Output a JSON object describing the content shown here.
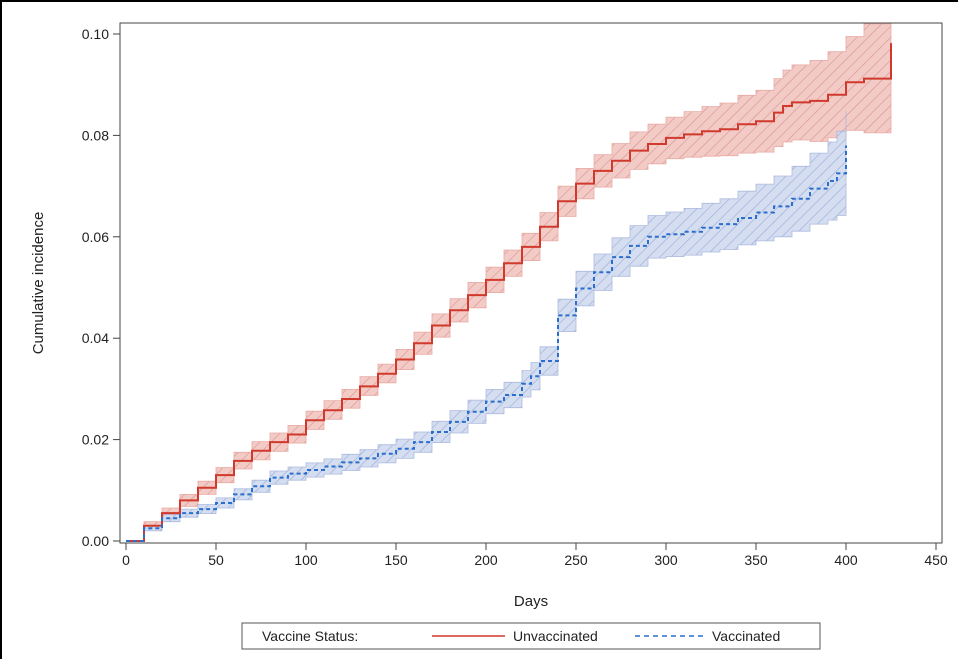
{
  "chart_data": {
    "type": "line",
    "title": "",
    "xlabel": "Days",
    "ylabel": "Cumulative incidence",
    "xlim": [
      0,
      450
    ],
    "ylim": [
      0,
      0.1
    ],
    "x_ticks": [
      "0",
      "50",
      "100",
      "150",
      "200",
      "250",
      "300",
      "350",
      "400",
      "450"
    ],
    "y_ticks": [
      "0.00",
      "0.02",
      "0.04",
      "0.06",
      "0.08",
      "0.10"
    ],
    "grid": false,
    "legend": {
      "placement": "bottom",
      "title": "Vaccine Status:",
      "entries": [
        "Unvaccinated",
        "Vaccinated"
      ]
    },
    "series": [
      {
        "name": "Unvaccinated",
        "color": "#d0392b",
        "band_color": "#e8a6a0",
        "line_style": "solid",
        "x": [
          0,
          10,
          20,
          30,
          40,
          50,
          60,
          70,
          80,
          90,
          100,
          110,
          120,
          130,
          140,
          150,
          160,
          170,
          180,
          190,
          200,
          210,
          220,
          230,
          240,
          250,
          260,
          270,
          280,
          290,
          300,
          310,
          320,
          330,
          340,
          350,
          360,
          365,
          370,
          380,
          390,
          400,
          410,
          425
        ],
        "y": [
          0,
          0.003,
          0.0055,
          0.008,
          0.0105,
          0.013,
          0.0158,
          0.0178,
          0.0195,
          0.021,
          0.0238,
          0.0258,
          0.028,
          0.0305,
          0.033,
          0.0358,
          0.039,
          0.0425,
          0.0455,
          0.0485,
          0.0515,
          0.0548,
          0.058,
          0.062,
          0.067,
          0.0705,
          0.073,
          0.075,
          0.077,
          0.0783,
          0.0795,
          0.0802,
          0.0808,
          0.0812,
          0.0822,
          0.0828,
          0.0845,
          0.0858,
          0.0865,
          0.0868,
          0.088,
          0.0905,
          0.0912,
          0.0982
        ],
        "lower": [
          0,
          0.0022,
          0.0045,
          0.0068,
          0.0092,
          0.0115,
          0.0142,
          0.016,
          0.0177,
          0.0193,
          0.022,
          0.024,
          0.0262,
          0.0287,
          0.0312,
          0.0338,
          0.0368,
          0.0402,
          0.0432,
          0.046,
          0.049,
          0.0522,
          0.0553,
          0.0592,
          0.064,
          0.0675,
          0.0698,
          0.0716,
          0.0733,
          0.0744,
          0.0754,
          0.0757,
          0.0759,
          0.076,
          0.0765,
          0.0767,
          0.0778,
          0.0787,
          0.0791,
          0.0788,
          0.0795,
          0.081,
          0.0805,
          0.0845
        ],
        "upper": [
          0,
          0.0038,
          0.0065,
          0.0092,
          0.0118,
          0.0145,
          0.0175,
          0.0196,
          0.0213,
          0.0228,
          0.0256,
          0.0277,
          0.0299,
          0.0324,
          0.0349,
          0.0378,
          0.0412,
          0.0448,
          0.0478,
          0.051,
          0.054,
          0.0574,
          0.0607,
          0.0648,
          0.07,
          0.0735,
          0.0762,
          0.0784,
          0.0807,
          0.0822,
          0.0836,
          0.0847,
          0.0857,
          0.0864,
          0.0879,
          0.0889,
          0.0912,
          0.0929,
          0.0939,
          0.0948,
          0.0965,
          0.0995,
          0.102,
          0.102
        ]
      },
      {
        "name": "Vaccinated",
        "color": "#2b6fce",
        "band_color": "#a8b7dd",
        "line_style": "dashed",
        "x": [
          0,
          10,
          20,
          30,
          40,
          50,
          60,
          70,
          80,
          90,
          100,
          110,
          120,
          130,
          140,
          150,
          160,
          170,
          180,
          190,
          200,
          210,
          220,
          225,
          230,
          240,
          250,
          260,
          270,
          280,
          290,
          300,
          310,
          320,
          330,
          340,
          350,
          360,
          370,
          380,
          390,
          395,
          400
        ],
        "y": [
          0,
          0.0025,
          0.0045,
          0.0055,
          0.0063,
          0.0075,
          0.0092,
          0.0108,
          0.0125,
          0.0133,
          0.014,
          0.0147,
          0.0155,
          0.0163,
          0.0172,
          0.0182,
          0.0195,
          0.0215,
          0.0235,
          0.0255,
          0.0275,
          0.0288,
          0.031,
          0.0325,
          0.0355,
          0.0445,
          0.0498,
          0.053,
          0.056,
          0.0582,
          0.06,
          0.0605,
          0.061,
          0.0618,
          0.0625,
          0.0637,
          0.0648,
          0.066,
          0.0675,
          0.0695,
          0.071,
          0.0725,
          0.078
        ],
        "lower": [
          0,
          0.002,
          0.0038,
          0.0047,
          0.0054,
          0.0065,
          0.0081,
          0.0096,
          0.0112,
          0.012,
          0.0126,
          0.0132,
          0.0139,
          0.0146,
          0.0154,
          0.0163,
          0.0175,
          0.0194,
          0.0213,
          0.0232,
          0.0251,
          0.0263,
          0.0284,
          0.0298,
          0.0327,
          0.0413,
          0.0464,
          0.0494,
          0.0522,
          0.0542,
          0.0558,
          0.0561,
          0.0564,
          0.057,
          0.0575,
          0.0584,
          0.0592,
          0.06,
          0.0611,
          0.0625,
          0.0633,
          0.0642,
          0.0692
        ],
        "upper": [
          0,
          0.003,
          0.0052,
          0.0063,
          0.0072,
          0.0085,
          0.0103,
          0.012,
          0.0138,
          0.0146,
          0.0154,
          0.0162,
          0.0171,
          0.018,
          0.019,
          0.0201,
          0.0215,
          0.0236,
          0.0257,
          0.0278,
          0.0299,
          0.0313,
          0.0336,
          0.0352,
          0.0383,
          0.0477,
          0.0532,
          0.0566,
          0.0598,
          0.0622,
          0.0642,
          0.0649,
          0.0656,
          0.0666,
          0.0675,
          0.069,
          0.0704,
          0.072,
          0.0739,
          0.0765,
          0.0787,
          0.0808,
          0.0848
        ]
      }
    ]
  }
}
